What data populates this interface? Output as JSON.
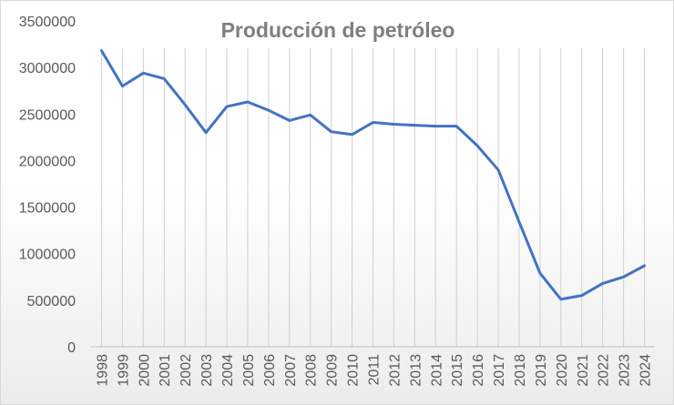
{
  "chart_data": {
    "type": "line",
    "title": "Producción de petróleo",
    "xlabel": "",
    "ylabel": "",
    "ylim": [
      0,
      3500000
    ],
    "y_ticks": [
      "0",
      "500000",
      "1000000",
      "1500000",
      "2000000",
      "2500000",
      "3000000",
      "3500000"
    ],
    "categories": [
      "1998",
      "1999",
      "2000",
      "2001",
      "2002",
      "2003",
      "2004",
      "2005",
      "2006",
      "2007",
      "2008",
      "2009",
      "2010",
      "2011",
      "2012",
      "2013",
      "2014",
      "2015",
      "2016",
      "2017",
      "2018",
      "2019",
      "2020",
      "2021",
      "2022",
      "2023",
      "2024"
    ],
    "series": [
      {
        "values": [
          3180000,
          2800000,
          2940000,
          2880000,
          2600000,
          2300000,
          2580000,
          2630000,
          2540000,
          2430000,
          2490000,
          2310000,
          2280000,
          2410000,
          2390000,
          2380000,
          2370000,
          2370000,
          2160000,
          1900000,
          1340000,
          790000,
          510000,
          550000,
          680000,
          750000,
          870000
        ]
      }
    ],
    "grid": "vertical",
    "legend": "none",
    "colors": {
      "line": "#4472c4",
      "title": "#7f7f7f",
      "ticks": "#595959",
      "grid": "#d0d0d0"
    }
  }
}
